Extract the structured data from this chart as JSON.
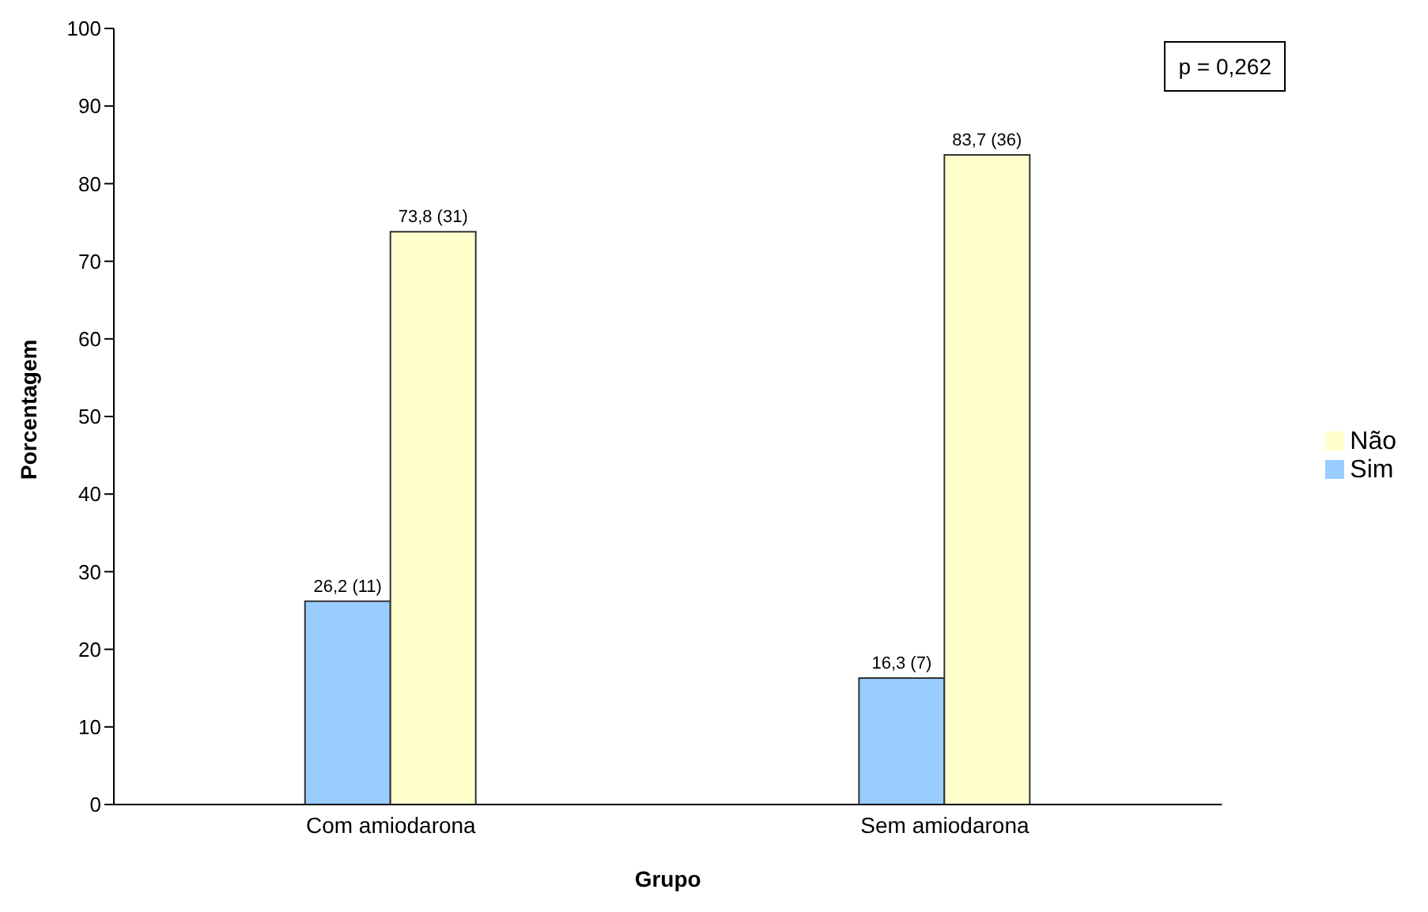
{
  "chart_data": {
    "type": "bar",
    "xlabel": "Grupo",
    "ylabel": "Porcentagem",
    "categories": [
      "Com amiodarona",
      "Sem amiodarona"
    ],
    "series": [
      {
        "name": "Sim",
        "color": "#99ccff",
        "values": [
          26.2,
          16.3
        ],
        "value_labels": [
          "26,2 (11)",
          "16,3 (7)"
        ]
      },
      {
        "name": "Não",
        "color": "#ffffcc",
        "values": [
          73.8,
          83.7
        ],
        "value_labels": [
          "73,8 (31)",
          "83,7 (36)"
        ]
      }
    ],
    "ylim": [
      0,
      100
    ],
    "yticks": [
      0,
      10,
      20,
      30,
      40,
      50,
      60,
      70,
      80,
      90,
      100
    ],
    "grid": false,
    "legend": "right",
    "annotations": [
      "p = 0,262"
    ]
  }
}
